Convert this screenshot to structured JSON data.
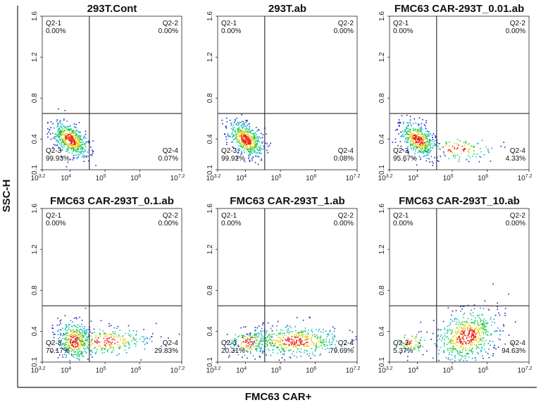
{
  "chart_data": [
    {
      "type": "scatter",
      "title": "293T.Cont",
      "xscale": "log",
      "xlim_exp": [
        3.2,
        7.2
      ],
      "xticks": [
        {
          "base": "10",
          "exp": "3.2"
        },
        {
          "base": "10",
          "exp": "4"
        },
        {
          "base": "10",
          "exp": "5"
        },
        {
          "base": "10",
          "exp": "6"
        },
        {
          "base": "10",
          "exp": "7.2"
        }
      ],
      "ylim": [
        0.1,
        1.6
      ],
      "yticks": [
        "0.1",
        "0.4",
        "0.8",
        "1.2",
        "1.6"
      ],
      "gate": {
        "x_exp": 4.55,
        "y": 0.65
      },
      "quadrants": [
        {
          "name": "Q2-1",
          "value": "0.00%",
          "pct": 0.0
        },
        {
          "name": "Q2-2",
          "value": "0.00%",
          "pct": 0.0
        },
        {
          "name": "Q2-3",
          "value": "99.93%",
          "pct": 99.93
        },
        {
          "name": "Q2-4",
          "value": "0.07%",
          "pct": 0.07
        }
      ]
    },
    {
      "type": "scatter",
      "title": "293T.ab",
      "xscale": "log",
      "xlim_exp": [
        3.2,
        7.2
      ],
      "xticks": [
        {
          "base": "10",
          "exp": "3.2"
        },
        {
          "base": "10",
          "exp": "4"
        },
        {
          "base": "10",
          "exp": "5"
        },
        {
          "base": "10",
          "exp": "6"
        },
        {
          "base": "10",
          "exp": "7.2"
        }
      ],
      "ylim": [
        0.1,
        1.6
      ],
      "yticks": [
        "0.1",
        "0.4",
        "0.8",
        "1.2",
        "1.6"
      ],
      "gate": {
        "x_exp": 4.55,
        "y": 0.65
      },
      "quadrants": [
        {
          "name": "Q2-1",
          "value": "0.00%",
          "pct": 0.0
        },
        {
          "name": "Q2-2",
          "value": "0.00%",
          "pct": 0.0
        },
        {
          "name": "Q2-3",
          "value": "99.92%",
          "pct": 99.92
        },
        {
          "name": "Q2-4",
          "value": "0.08%",
          "pct": 0.08
        }
      ]
    },
    {
      "type": "scatter",
      "title": "FMC63 CAR-293T_0.01.ab",
      "xscale": "log",
      "xlim_exp": [
        3.2,
        7.2
      ],
      "xticks": [
        {
          "base": "10",
          "exp": "3.2"
        },
        {
          "base": "10",
          "exp": "4"
        },
        {
          "base": "10",
          "exp": "5"
        },
        {
          "base": "10",
          "exp": "6"
        },
        {
          "base": "10",
          "exp": "7.2"
        }
      ],
      "ylim": [
        0.1,
        1.6
      ],
      "yticks": [
        "0.1",
        "0.4",
        "0.8",
        "1.2",
        "1.6"
      ],
      "gate": {
        "x_exp": 4.55,
        "y": 0.65
      },
      "quadrants": [
        {
          "name": "Q2-1",
          "value": "0.00%",
          "pct": 0.0
        },
        {
          "name": "Q2-2",
          "value": "0.00%",
          "pct": 0.0
        },
        {
          "name": "Q2-3",
          "value": "95.67%",
          "pct": 95.67
        },
        {
          "name": "Q2-4",
          "value": "4.33%",
          "pct": 4.33
        }
      ]
    },
    {
      "type": "scatter",
      "title": "FMC63 CAR-293T_0.1.ab",
      "xscale": "log",
      "xlim_exp": [
        3.2,
        7.2
      ],
      "xticks": [
        {
          "base": "10",
          "exp": "3.2"
        },
        {
          "base": "10",
          "exp": "4"
        },
        {
          "base": "10",
          "exp": "5"
        },
        {
          "base": "10",
          "exp": "6"
        },
        {
          "base": "10",
          "exp": "7.2"
        }
      ],
      "ylim": [
        0.1,
        1.6
      ],
      "yticks": [
        "0.1",
        "0.4",
        "0.8",
        "1.2",
        "1.6"
      ],
      "gate": {
        "x_exp": 4.55,
        "y": 0.65
      },
      "quadrants": [
        {
          "name": "Q2-1",
          "value": "0.00%",
          "pct": 0.0
        },
        {
          "name": "Q2-2",
          "value": "0.00%",
          "pct": 0.0
        },
        {
          "name": "Q2-3",
          "value": "70.17%",
          "pct": 70.17
        },
        {
          "name": "Q2-4",
          "value": "29.83%",
          "pct": 29.83
        }
      ]
    },
    {
      "type": "scatter",
      "title": "FMC63 CAR-293T_1.ab",
      "xscale": "log",
      "xlim_exp": [
        3.2,
        7.2
      ],
      "xticks": [
        {
          "base": "10",
          "exp": "3.2"
        },
        {
          "base": "10",
          "exp": "4"
        },
        {
          "base": "10",
          "exp": "5"
        },
        {
          "base": "10",
          "exp": "6"
        },
        {
          "base": "10",
          "exp": "7.2"
        }
      ],
      "ylim": [
        0.1,
        1.6
      ],
      "yticks": [
        "0.1",
        "0.4",
        "0.8",
        "1.2",
        "1.6"
      ],
      "gate": {
        "x_exp": 4.55,
        "y": 0.65
      },
      "quadrants": [
        {
          "name": "Q2-1",
          "value": "0.00%",
          "pct": 0.0
        },
        {
          "name": "Q2-2",
          "value": "0.00%",
          "pct": 0.0
        },
        {
          "name": "Q2-3",
          "value": "20.31%",
          "pct": 20.31
        },
        {
          "name": "Q2-4",
          "value": "79.69%",
          "pct": 79.69
        }
      ]
    },
    {
      "type": "scatter",
      "title": "FMC63 CAR-293T_10.ab",
      "xscale": "log",
      "xlim_exp": [
        3.2,
        7.2
      ],
      "xticks": [
        {
          "base": "10",
          "exp": "3.2"
        },
        {
          "base": "10",
          "exp": "4"
        },
        {
          "base": "10",
          "exp": "5"
        },
        {
          "base": "10",
          "exp": "6"
        },
        {
          "base": "10",
          "exp": "7.2"
        }
      ],
      "ylim": [
        0.1,
        1.6
      ],
      "yticks": [
        "0.1",
        "0.4",
        "0.8",
        "1.2",
        "1.6"
      ],
      "gate": {
        "x_exp": 4.55,
        "y": 0.65
      },
      "quadrants": [
        {
          "name": "Q2-1",
          "value": "0.00%",
          "pct": 0.0
        },
        {
          "name": "Q2-2",
          "value": "0.00%",
          "pct": 0.0
        },
        {
          "name": "Q2-3",
          "value": "5.37%",
          "pct": 5.37
        },
        {
          "name": "Q2-4",
          "value": "94.63%",
          "pct": 94.63
        }
      ]
    }
  ],
  "figure": {
    "xlabel": "FMC63 CAR+",
    "ylabel": "SSC-H"
  },
  "colors": {
    "axis": "#222222",
    "gate_line": "#111111",
    "density_low": "#1f1fbf",
    "density_mid": "#22cc44",
    "density_high": "#ee2211"
  }
}
